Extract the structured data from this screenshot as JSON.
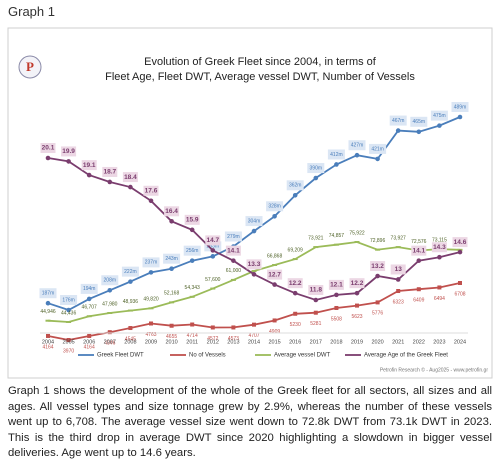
{
  "heading": "Graph 1",
  "paragraph": "Graph 1 shows the development of the whole of the Greek fleet for all sectors, all sizes and all ages. All vessel types and size tonnage grew by 2.9%, whereas the number of these vessels went up to 6,708. The average vessel size went down to 72.8k DWT from 73.1k DWT in 2023. This is the third drop in average DWT since 2020 highlighting a slowdown in bigger vessel deliveries. Age went up to 14.6 years.",
  "chart_data": {
    "type": "line",
    "title": [
      "Evolution of Greek Fleet since 2004, in terms of",
      "Fleet Age, Fleet DWT, Average vessel DWT, Number of Vessels"
    ],
    "source": "Petrofin Research © - Aug2025 - www.petrofin.gr",
    "categories": [
      "2004",
      "2005",
      "2006",
      "2007",
      "2008",
      "2009",
      "2010",
      "2011",
      "2012",
      "2013",
      "2014",
      "2015",
      "2016",
      "2017",
      "2018",
      "2019",
      "2020",
      "2021",
      "2022",
      "2023",
      "2024"
    ],
    "series": [
      {
        "name": "Greek Fleet DWT",
        "color": "#4a7ebb",
        "values": [
          187,
          176,
          194,
          208,
          222,
          237,
          243,
          256,
          263,
          279,
          304,
          328,
          362,
          390,
          412,
          427,
          421,
          467,
          465,
          475,
          489
        ],
        "value_labels": [
          "187m",
          "176m",
          "194m",
          "208m",
          "222m",
          "237m",
          "243m",
          "256m",
          "263m",
          "279m",
          "304m",
          "328m",
          "362m",
          "390m",
          "412m",
          "427m",
          "421m",
          "467m",
          "465m",
          "475m",
          "489m"
        ]
      },
      {
        "name": "No of Vessels",
        "color": "#c0504d",
        "values": [
          4164,
          3970,
          4164,
          4346,
          4545,
          4763,
          4655,
          4714,
          4572,
          4573,
          4707,
          4909,
          5230,
          5281,
          5508,
          5623,
          5776,
          6323,
          6409,
          6494,
          6708
        ]
      },
      {
        "name": "Average vessel DWT",
        "color": "#9bbb59",
        "values": [
          44946,
          44436,
          46707,
          47980,
          48936,
          49820,
          52168,
          54343,
          57600,
          61000,
          64495,
          66868,
          69209,
          73921,
          74857,
          75922,
          72896,
          73927,
          72576,
          73115,
          72834
        ],
        "value_labels": [
          "44,946",
          "44,436",
          "46,707",
          "47,980",
          "48,936",
          "49,820",
          "52,168",
          "54,343",
          "57,600",
          "61,000",
          "64,495",
          "66,868",
          "69,209",
          "73,921",
          "74,857",
          "75,922",
          "72,896",
          "73,927",
          "72,576",
          "73,115",
          "72,834"
        ]
      },
      {
        "name": "Average Age of the Greek Fleet",
        "color": "#7a3d6e",
        "values": [
          20.1,
          19.9,
          19.1,
          18.7,
          18.4,
          17.6,
          16.4,
          15.9,
          14.7,
          14.1,
          13.3,
          12.7,
          12.2,
          11.8,
          12.1,
          12.2,
          13.2,
          13.0,
          14.1,
          14.3,
          14.6
        ]
      }
    ]
  }
}
